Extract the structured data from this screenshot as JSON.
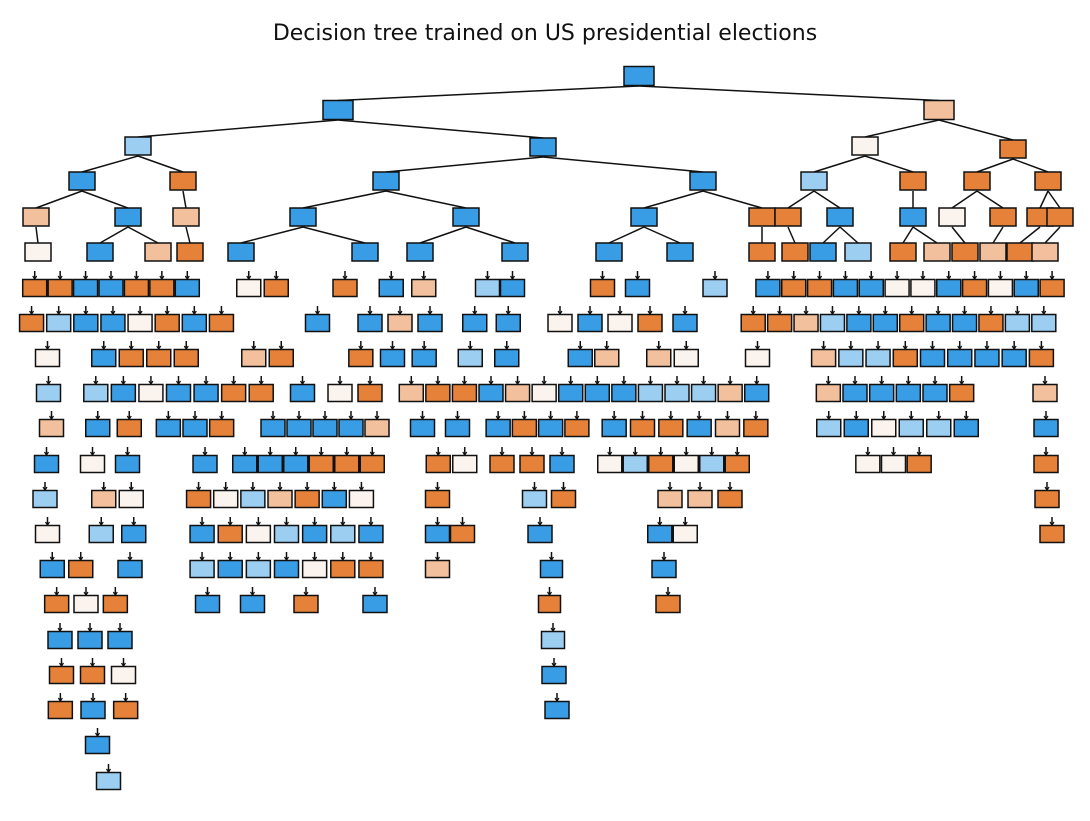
{
  "title": "Decision tree trained on US presidential elections"
}
